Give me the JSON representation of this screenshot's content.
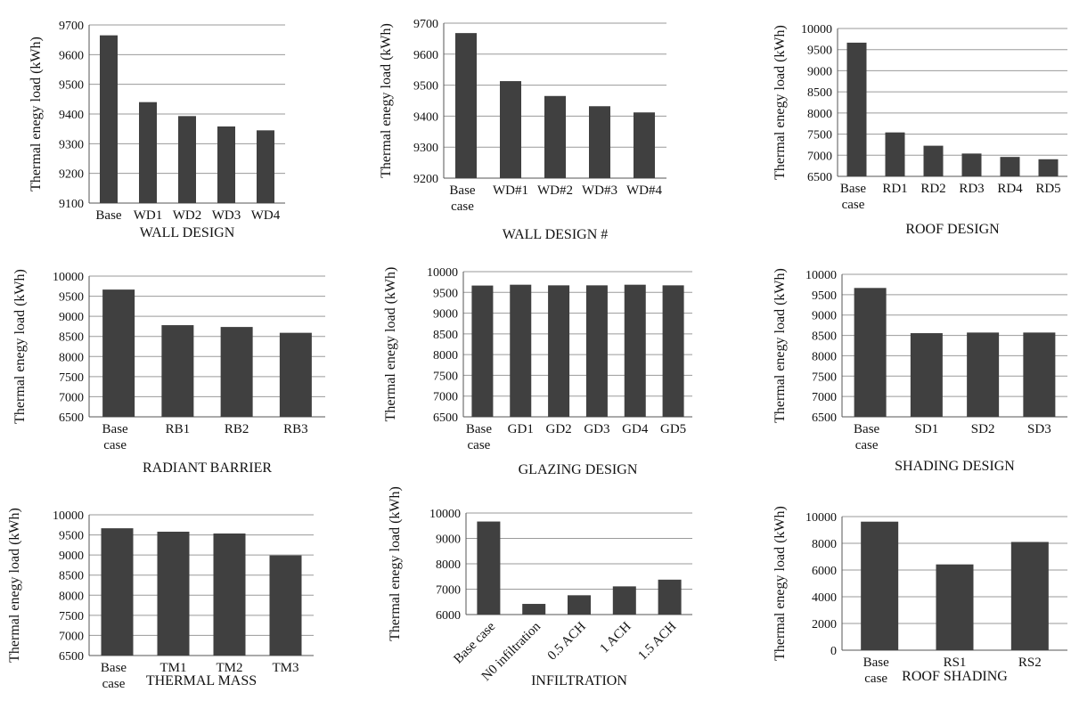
{
  "chart_data": [
    {
      "type": "bar",
      "title": "WALL DESIGN",
      "ylabel": "Thermal enegy load (kWh)",
      "ylim": [
        9100,
        9700
      ],
      "yticks": [
        9100,
        9200,
        9300,
        9400,
        9500,
        9600,
        9700
      ],
      "categories": [
        "Base",
        "WD1",
        "WD2",
        "WD3",
        "WD4"
      ],
      "values": [
        9665,
        9440,
        9393,
        9358,
        9345
      ],
      "grid": true
    },
    {
      "type": "bar",
      "title": "WALL DESIGN #",
      "ylabel": "Thermal enegy load (kWh)",
      "ylim": [
        9200,
        9700
      ],
      "yticks": [
        9200,
        9300,
        9400,
        9500,
        9600,
        9700
      ],
      "categories": [
        "Base case",
        "WD#1",
        "WD#2",
        "WD#3",
        "WD#4"
      ],
      "values": [
        9668,
        9513,
        9465,
        9432,
        9412
      ],
      "grid": true
    },
    {
      "type": "bar",
      "title": "ROOF DESIGN",
      "ylabel": "Thermal enegy load (kWh)",
      "ylim": [
        6500,
        10000
      ],
      "yticks": [
        6500,
        7000,
        7500,
        8000,
        8500,
        9000,
        9500,
        10000
      ],
      "categories": [
        "Base case",
        "RD1",
        "RD2",
        "RD3",
        "RD4",
        "RD5"
      ],
      "values": [
        9665,
        7540,
        7225,
        7040,
        6960,
        6905
      ],
      "grid": true
    },
    {
      "type": "bar",
      "title": "RADIANT BARRIER",
      "ylabel": "Thermal enegy load (kWh)",
      "ylim": [
        6500,
        10000
      ],
      "yticks": [
        6500,
        7000,
        7500,
        8000,
        8500,
        9000,
        9500,
        10000
      ],
      "categories": [
        "Base case",
        "RB1",
        "RB2",
        "RB3"
      ],
      "values": [
        9665,
        8780,
        8735,
        8590
      ],
      "grid": true
    },
    {
      "type": "bar",
      "title": "GLAZING DESIGN",
      "ylabel": "Thermal enegy load (kWh)",
      "ylim": [
        6500,
        10000
      ],
      "yticks": [
        6500,
        7000,
        7500,
        8000,
        8500,
        9000,
        9500,
        10000
      ],
      "categories": [
        "Base case",
        "GD1",
        "GD2",
        "GD3",
        "GD4",
        "GD5"
      ],
      "values": [
        9665,
        9685,
        9670,
        9670,
        9685,
        9670
      ],
      "grid": true
    },
    {
      "type": "bar",
      "title": "SHADING DESIGN",
      "ylabel": "Thermal enegy load (kWh)",
      "ylim": [
        6500,
        10000
      ],
      "yticks": [
        6500,
        7000,
        7500,
        8000,
        8500,
        9000,
        9500,
        10000
      ],
      "categories": [
        "Base case",
        "SD1",
        "SD2",
        "SD3"
      ],
      "values": [
        9665,
        8555,
        8570,
        8570
      ],
      "grid": true
    },
    {
      "type": "bar",
      "title": "THERMAL MASS",
      "ylabel": "Thermal enegy load (kWh)",
      "ylim": [
        6500,
        10000
      ],
      "yticks": [
        6500,
        7000,
        7500,
        8000,
        8500,
        9000,
        9500,
        10000
      ],
      "categories": [
        "Base case",
        "TM1",
        "TM2",
        "TM3"
      ],
      "values": [
        9665,
        9580,
        9535,
        8990
      ],
      "grid": true
    },
    {
      "type": "bar",
      "title": "INFILTRATION",
      "ylabel": "Thermal enegy load (kWh)",
      "ylim": [
        6000,
        10000
      ],
      "yticks": [
        6000,
        7000,
        8000,
        9000,
        10000
      ],
      "categories": [
        "Base case",
        "N0 infiltration",
        "0.5 ACH",
        "1 ACH",
        "1.5 ACH"
      ],
      "values": [
        9665,
        6420,
        6760,
        7110,
        7375
      ],
      "grid": true
    },
    {
      "type": "bar",
      "title": "ROOF SHADING",
      "ylabel": "Thermal enegy load (kWh)",
      "ylim": [
        0,
        10000
      ],
      "yticks": [
        0,
        2000,
        4000,
        6000,
        8000,
        10000
      ],
      "categories": [
        "Base case",
        "RS1",
        "RS2"
      ],
      "values": [
        9620,
        6420,
        8100
      ],
      "grid": true
    }
  ]
}
